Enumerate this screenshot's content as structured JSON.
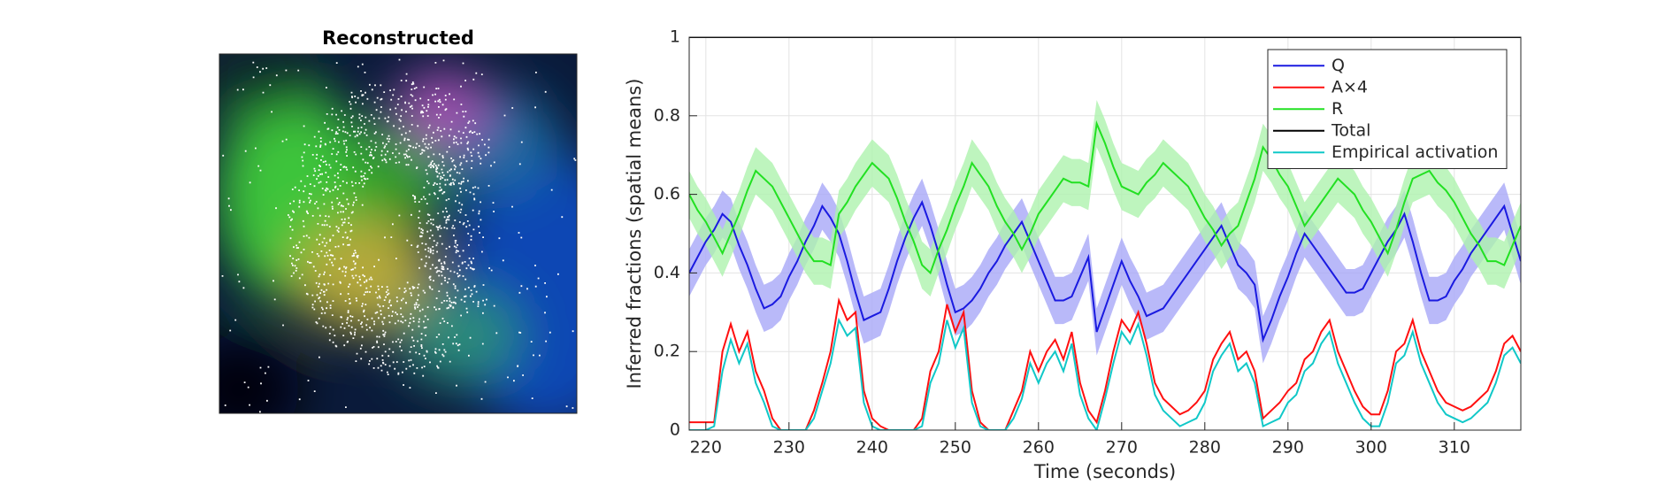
{
  "image_title": "Reconstructed",
  "chart_data": {
    "type": "line",
    "xlabel": "Time (seconds)",
    "ylabel": "Inferred fractions (spatial means)",
    "xlim": [
      218,
      318
    ],
    "xticks": [
      220,
      230,
      240,
      250,
      260,
      270,
      280,
      290,
      300,
      310
    ],
    "ylim": [
      0,
      1
    ],
    "yticks": [
      0,
      0.2,
      0.4,
      0.6,
      0.8,
      1
    ],
    "grid": true,
    "legend": "northeast",
    "x": [
      218,
      219,
      220,
      221,
      222,
      223,
      224,
      225,
      226,
      227,
      228,
      229,
      230,
      231,
      232,
      233,
      234,
      235,
      236,
      237,
      238,
      239,
      240,
      241,
      242,
      243,
      244,
      245,
      246,
      247,
      248,
      249,
      250,
      251,
      252,
      253,
      254,
      255,
      256,
      257,
      258,
      259,
      260,
      261,
      262,
      263,
      264,
      265,
      266,
      267,
      268,
      269,
      270,
      271,
      272,
      273,
      274,
      275,
      276,
      277,
      278,
      279,
      280,
      281,
      282,
      283,
      284,
      285,
      286,
      287,
      288,
      289,
      290,
      291,
      292,
      293,
      294,
      295,
      296,
      297,
      298,
      299,
      300,
      301,
      302,
      303,
      304,
      305,
      306,
      307,
      308,
      309,
      310,
      311,
      312,
      313,
      314,
      315,
      316,
      317,
      318
    ],
    "series": [
      {
        "name": "Q",
        "color": "#1a1ae0",
        "band": 0.06,
        "band_color": "#a8a8f8",
        "values": [
          0.4,
          0.44,
          0.48,
          0.51,
          0.55,
          0.53,
          0.47,
          0.42,
          0.36,
          0.31,
          0.32,
          0.34,
          0.39,
          0.43,
          0.48,
          0.52,
          0.57,
          0.54,
          0.5,
          0.43,
          0.35,
          0.28,
          0.29,
          0.3,
          0.36,
          0.43,
          0.49,
          0.54,
          0.58,
          0.52,
          0.45,
          0.37,
          0.3,
          0.31,
          0.33,
          0.36,
          0.4,
          0.43,
          0.47,
          0.5,
          0.53,
          0.48,
          0.43,
          0.38,
          0.33,
          0.33,
          0.34,
          0.39,
          0.44,
          0.25,
          0.31,
          0.37,
          0.43,
          0.38,
          0.34,
          0.29,
          0.3,
          0.31,
          0.34,
          0.37,
          0.4,
          0.43,
          0.46,
          0.49,
          0.52,
          0.47,
          0.42,
          0.4,
          0.37,
          0.23,
          0.28,
          0.34,
          0.39,
          0.45,
          0.5,
          0.47,
          0.44,
          0.41,
          0.38,
          0.35,
          0.35,
          0.36,
          0.4,
          0.44,
          0.48,
          0.51,
          0.55,
          0.48,
          0.4,
          0.33,
          0.33,
          0.34,
          0.38,
          0.41,
          0.45,
          0.48,
          0.51,
          0.54,
          0.57,
          0.5,
          0.43
        ]
      },
      {
        "name": "A×4",
        "color": "#ff1010",
        "values": [
          0.02,
          0.02,
          0.02,
          0.02,
          0.2,
          0.27,
          0.2,
          0.25,
          0.15,
          0.1,
          0.03,
          0,
          0,
          0,
          0,
          0.05,
          0.12,
          0.2,
          0.33,
          0.28,
          0.3,
          0.1,
          0.03,
          0.01,
          0,
          0,
          0,
          0,
          0.03,
          0.15,
          0.2,
          0.32,
          0.25,
          0.3,
          0.1,
          0.02,
          0,
          0,
          0,
          0.05,
          0.1,
          0.2,
          0.15,
          0.2,
          0.23,
          0.18,
          0.25,
          0.12,
          0.05,
          0.02,
          0.1,
          0.2,
          0.28,
          0.25,
          0.3,
          0.22,
          0.12,
          0.08,
          0.06,
          0.04,
          0.05,
          0.07,
          0.1,
          0.18,
          0.22,
          0.25,
          0.18,
          0.2,
          0.15,
          0.03,
          0.05,
          0.07,
          0.1,
          0.12,
          0.18,
          0.2,
          0.25,
          0.28,
          0.2,
          0.15,
          0.1,
          0.06,
          0.04,
          0.04,
          0.1,
          0.2,
          0.22,
          0.28,
          0.2,
          0.15,
          0.1,
          0.07,
          0.06,
          0.05,
          0.06,
          0.08,
          0.1,
          0.15,
          0.22,
          0.24,
          0.2
        ]
      },
      {
        "name": "R",
        "color": "#22e022",
        "band": 0.06,
        "band_color": "#aef2ae",
        "values": [
          0.6,
          0.56,
          0.53,
          0.49,
          0.45,
          0.5,
          0.55,
          0.61,
          0.66,
          0.64,
          0.62,
          0.58,
          0.54,
          0.5,
          0.46,
          0.43,
          0.43,
          0.42,
          0.55,
          0.58,
          0.62,
          0.65,
          0.68,
          0.66,
          0.64,
          0.59,
          0.53,
          0.48,
          0.42,
          0.4,
          0.46,
          0.51,
          0.57,
          0.62,
          0.68,
          0.65,
          0.62,
          0.57,
          0.53,
          0.5,
          0.46,
          0.5,
          0.55,
          0.58,
          0.61,
          0.64,
          0.63,
          0.63,
          0.62,
          0.78,
          0.73,
          0.67,
          0.62,
          0.61,
          0.6,
          0.63,
          0.65,
          0.68,
          0.66,
          0.64,
          0.62,
          0.58,
          0.54,
          0.51,
          0.47,
          0.5,
          0.52,
          0.58,
          0.64,
          0.72,
          0.69,
          0.65,
          0.62,
          0.57,
          0.52,
          0.55,
          0.58,
          0.61,
          0.64,
          0.62,
          0.6,
          0.56,
          0.53,
          0.49,
          0.45,
          0.51,
          0.58,
          0.64,
          0.65,
          0.66,
          0.63,
          0.61,
          0.58,
          0.54,
          0.5,
          0.47,
          0.43,
          0.43,
          0.42,
          0.47,
          0.52
        ]
      },
      {
        "name": "Total",
        "color": "#000000",
        "values": [
          1,
          1,
          1,
          1,
          1,
          1,
          1,
          1,
          1,
          1,
          1,
          1,
          1,
          1,
          1,
          1,
          1,
          1,
          1,
          1,
          1,
          1,
          1,
          1,
          1,
          1,
          1,
          1,
          1,
          1,
          1,
          1,
          1,
          1,
          1,
          1,
          1,
          1,
          1,
          1,
          1,
          1,
          1,
          1,
          1,
          1,
          1,
          1,
          1,
          1,
          1,
          1,
          1,
          1,
          1,
          1,
          1,
          1,
          1,
          1,
          1,
          1,
          1,
          1,
          1,
          1,
          1,
          1,
          1,
          1,
          1,
          1,
          1,
          1,
          1,
          1,
          1,
          1,
          1,
          1,
          1,
          1,
          1,
          1,
          1,
          1,
          1,
          1,
          1,
          1,
          1,
          1,
          1,
          1,
          1,
          1,
          1,
          1,
          1,
          1,
          1
        ]
      },
      {
        "name": "Empirical activation",
        "color": "#10c8c8",
        "values": [
          0,
          0,
          0,
          0.01,
          0.15,
          0.23,
          0.17,
          0.22,
          0.12,
          0.07,
          0.01,
          0,
          0,
          0,
          0,
          0.03,
          0.1,
          0.17,
          0.28,
          0.24,
          0.26,
          0.07,
          0.01,
          0,
          0,
          0,
          0,
          0,
          0.01,
          0.12,
          0.17,
          0.28,
          0.21,
          0.26,
          0.07,
          0.01,
          0,
          0,
          0,
          0.03,
          0.08,
          0.17,
          0.12,
          0.17,
          0.2,
          0.15,
          0.22,
          0.09,
          0.03,
          0,
          0.08,
          0.17,
          0.25,
          0.22,
          0.27,
          0.19,
          0.09,
          0.05,
          0.03,
          0.01,
          0.02,
          0.03,
          0.07,
          0.15,
          0.19,
          0.22,
          0.15,
          0.17,
          0.12,
          0.01,
          0.02,
          0.03,
          0.07,
          0.09,
          0.15,
          0.17,
          0.22,
          0.25,
          0.17,
          0.12,
          0.07,
          0.03,
          0.01,
          0.01,
          0.07,
          0.17,
          0.19,
          0.25,
          0.17,
          0.12,
          0.07,
          0.04,
          0.03,
          0.02,
          0.03,
          0.05,
          0.07,
          0.12,
          0.19,
          0.21,
          0.17
        ]
      }
    ]
  }
}
